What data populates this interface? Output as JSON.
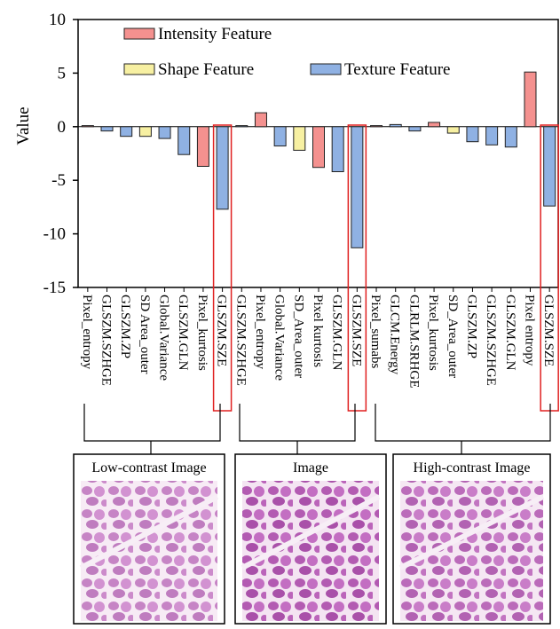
{
  "chart_data": {
    "type": "bar",
    "ylabel": "Value",
    "categories": [
      "Pixel_entropy",
      "GLSZM.SZHGE",
      "GLSZM.ZP",
      "SD Area_outer",
      "Global.Variance",
      "GLSZM.GLN",
      "Pixel_kurtosis",
      "GLSZM.SZE",
      "GLSZM.SZHGE",
      "Pixel_entropy",
      "Global.Variance",
      "SD_Area_outer",
      "Pixel kurtosis",
      "GLSZM.GLN",
      "GLSZM.SZE",
      "Pixel_sumabs",
      "GLCM.Energy",
      "GLRLM.SRHGE",
      "Pixel_kurtosis",
      "SD_Area_outer",
      "GLSZM.ZP",
      "GLSZM.SZHGE",
      "GLSZM.GLN",
      "Pixel entropy",
      "GLSZM.SZE"
    ],
    "series": [
      {
        "name": "Intensity Feature",
        "color": "#f4918f",
        "values": [
          0.1,
          null,
          null,
          null,
          null,
          null,
          -3.7,
          null,
          null,
          1.3,
          null,
          null,
          -3.8,
          null,
          null,
          0.1,
          null,
          null,
          0.4,
          null,
          null,
          null,
          null,
          5.1,
          null
        ]
      },
      {
        "name": "Shape Feature",
        "color": "#f7f0a2",
        "values": [
          null,
          null,
          null,
          -0.9,
          null,
          null,
          null,
          null,
          null,
          null,
          null,
          -2.2,
          null,
          null,
          null,
          null,
          null,
          null,
          null,
          -0.6,
          null,
          null,
          null,
          null,
          null
        ]
      },
      {
        "name": "Texture Feature",
        "color": "#8fb1e3",
        "values": [
          null,
          -0.4,
          -0.9,
          null,
          -1.1,
          -2.6,
          null,
          -7.7,
          0.1,
          null,
          -1.8,
          null,
          null,
          -4.2,
          -11.3,
          null,
          0.2,
          -0.4,
          null,
          null,
          -1.4,
          -1.7,
          -1.9,
          null,
          -7.4
        ]
      }
    ],
    "highlight_color": "#e02020",
    "highlight_indices": [
      7,
      14,
      24
    ],
    "ylim": [
      -15,
      10
    ],
    "yticks": [
      -15,
      -10,
      -5,
      0,
      5,
      10
    ]
  },
  "panels": [
    "Low-contrast Image",
    "Image",
    "High-contrast Image"
  ]
}
